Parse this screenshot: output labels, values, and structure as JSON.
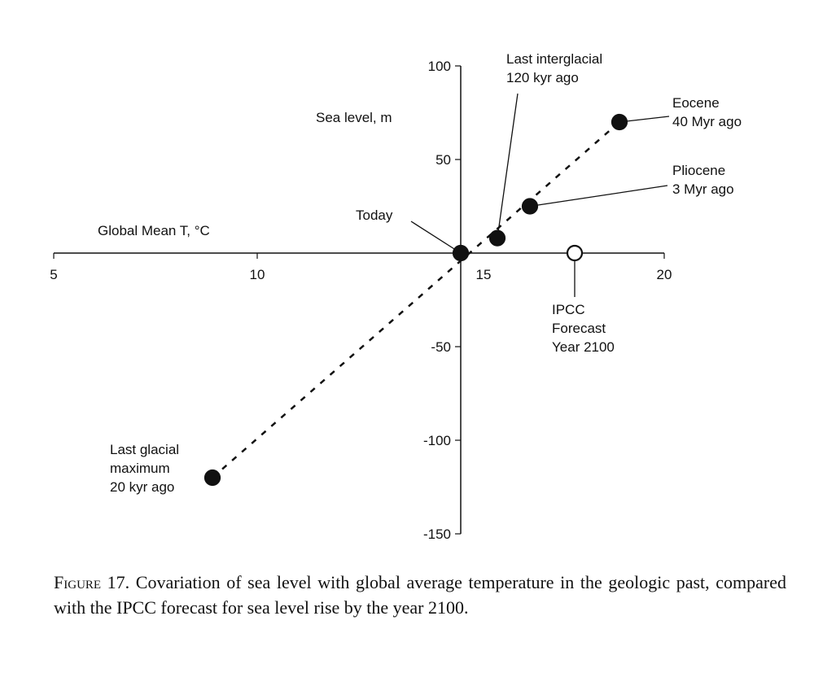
{
  "chart_data": {
    "type": "scatter",
    "xlabel": "Global Mean T, °C",
    "ylabel": "Sea level, m",
    "xlim": [
      5,
      20
    ],
    "ylim": [
      -150,
      100
    ],
    "xticks": [
      5,
      10,
      15,
      20
    ],
    "yticks": [
      100,
      50,
      -50,
      -100,
      -150
    ],
    "grid": false,
    "points": [
      {
        "label": [
          "Last glacial",
          "maximum",
          "20 kyr ago"
        ],
        "x": 8.9,
        "y": -120,
        "filled": true
      },
      {
        "label": [
          "Today"
        ],
        "x": 15,
        "y": 0,
        "filled": true
      },
      {
        "label": [
          "Last interglacial",
          "120 kyr ago"
        ],
        "x": 15.9,
        "y": 8,
        "filled": true
      },
      {
        "label": [
          "Pliocene",
          "3 Myr ago"
        ],
        "x": 16.7,
        "y": 25,
        "filled": true
      },
      {
        "label": [
          "Eocene",
          "40 Myr ago"
        ],
        "x": 18.9,
        "y": 70,
        "filled": true
      },
      {
        "label": [
          "IPCC",
          "Forecast",
          "Year 2100"
        ],
        "x": 17.8,
        "y": 0,
        "filled": false
      }
    ],
    "trend_line": {
      "style": "dashed",
      "from": [
        8.9,
        -120
      ],
      "to": [
        18.9,
        70
      ]
    }
  },
  "caption": {
    "figure_label": "Figure 17.",
    "text": "Covariation of sea level with global average temperature in the geologic past, compared with the IPCC forecast for sea level rise by the year 2100."
  }
}
